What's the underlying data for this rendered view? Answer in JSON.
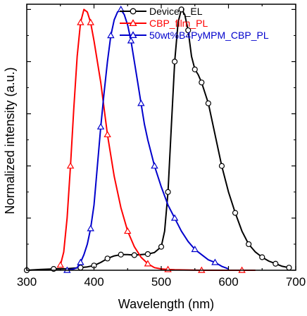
{
  "chart_data": {
    "type": "line",
    "title": "",
    "xlabel": "Wavelength (nm)",
    "ylabel": "Normalized intensity (a.u.)",
    "xlim": [
      300,
      700
    ],
    "ylim": [
      0,
      1.02
    ],
    "x_ticks": [
      300,
      400,
      500,
      600,
      700
    ],
    "x_tick_labels": [
      "300",
      "400",
      "500",
      "600",
      "700"
    ],
    "y_tick_labels_shown": false,
    "grid": false,
    "legend_position": "top-center",
    "series": [
      {
        "name": "Device I_EL",
        "color": "#000000",
        "marker": "open-circle",
        "x": [
          300,
          320,
          340,
          360,
          380,
          390,
          400,
          410,
          420,
          430,
          440,
          450,
          460,
          470,
          480,
          490,
          500,
          505,
          510,
          515,
          520,
          525,
          530,
          535,
          540,
          545,
          550,
          555,
          560,
          565,
          570,
          580,
          590,
          600,
          610,
          620,
          630,
          640,
          650,
          660,
          670,
          680,
          690
        ],
        "y": [
          0.0,
          0.003,
          0.005,
          0.006,
          0.01,
          0.013,
          0.018,
          0.03,
          0.045,
          0.055,
          0.06,
          0.06,
          0.058,
          0.06,
          0.062,
          0.068,
          0.09,
          0.15,
          0.3,
          0.55,
          0.8,
          0.95,
          1.0,
          0.98,
          0.92,
          0.82,
          0.77,
          0.75,
          0.72,
          0.68,
          0.64,
          0.52,
          0.4,
          0.3,
          0.22,
          0.15,
          0.1,
          0.07,
          0.05,
          0.035,
          0.025,
          0.015,
          0.01
        ]
      },
      {
        "name": "CBP_film_PL",
        "color": "#ff0000",
        "marker": "open-triangle",
        "x": [
          350,
          355,
          360,
          365,
          370,
          375,
          380,
          385,
          390,
          395,
          400,
          410,
          420,
          430,
          440,
          450,
          460,
          470,
          480,
          490,
          500,
          510,
          520,
          540,
          560,
          580,
          600,
          620,
          640
        ],
        "y": [
          0.02,
          0.07,
          0.2,
          0.4,
          0.62,
          0.82,
          0.95,
          1.0,
          0.99,
          0.95,
          0.88,
          0.72,
          0.52,
          0.36,
          0.24,
          0.15,
          0.09,
          0.05,
          0.025,
          0.01,
          0.005,
          0.003,
          0.002,
          0.001,
          0.0,
          0.0,
          0.0,
          0.0,
          0.0
        ]
      },
      {
        "name": "50wt%B4PyMPM_CBP_PL",
        "color": "#0000cc",
        "marker": "open-triangle",
        "x": [
          360,
          370,
          375,
          380,
          385,
          390,
          395,
          400,
          405,
          410,
          415,
          420,
          425,
          430,
          435,
          440,
          445,
          450,
          455,
          460,
          465,
          470,
          475,
          480,
          490,
          500,
          510,
          520,
          530,
          540,
          550,
          560,
          570,
          580,
          590,
          600
        ],
        "y": [
          0.0,
          0.005,
          0.01,
          0.03,
          0.06,
          0.1,
          0.16,
          0.25,
          0.4,
          0.55,
          0.68,
          0.8,
          0.9,
          0.96,
          0.99,
          1.0,
          0.98,
          0.94,
          0.88,
          0.8,
          0.72,
          0.64,
          0.56,
          0.5,
          0.4,
          0.32,
          0.25,
          0.2,
          0.15,
          0.11,
          0.08,
          0.06,
          0.04,
          0.03,
          0.015,
          0.005
        ]
      }
    ]
  }
}
